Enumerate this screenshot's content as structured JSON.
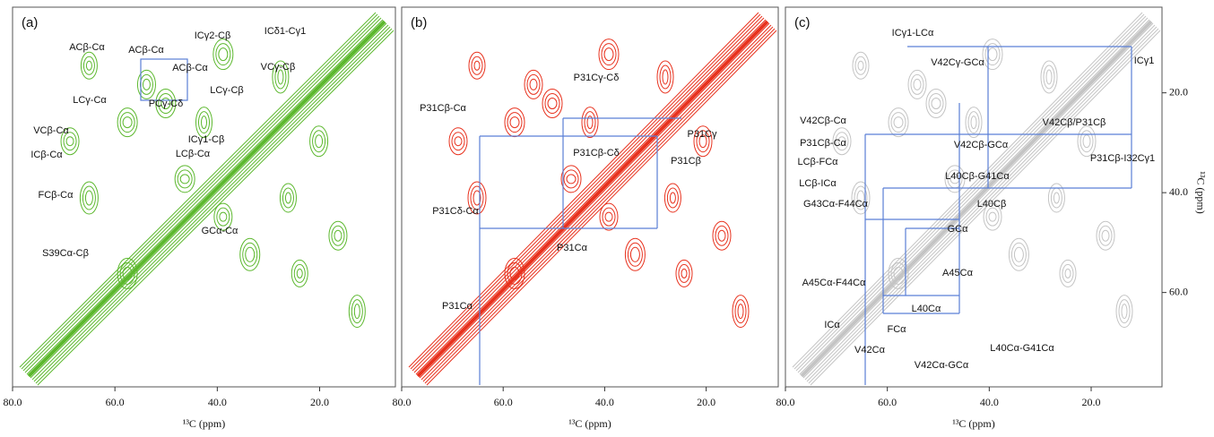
{
  "panels": [
    {
      "label": "(a)",
      "xlabel": "¹³C (ppm)",
      "xlim": [
        80,
        5.2
      ],
      "xticks": [
        {
          "value": 80,
          "label": "80.0"
        },
        {
          "value": 60,
          "label": "60.0"
        },
        {
          "value": 40,
          "label": "40.0"
        },
        {
          "value": 20,
          "label": "20.0"
        }
      ],
      "annotations": [
        "ACβ-Cα",
        "ACβ-Cα",
        "ICγ2-Cβ",
        "ICδ1-Cγ1",
        "ACβ-Cα",
        "VCγ-Cβ",
        "LCγ-Cα",
        "PCγ-Cδ",
        "LCγ-Cβ",
        "VCβ-Cα",
        "ICγ1-Cβ",
        "ICβ-Cα",
        "LCβ-Cα",
        "FCβ-Cα",
        "GCα-Cα",
        "S39Cα-Cβ"
      ]
    },
    {
      "label": "(b)",
      "xlabel": "¹³C (ppm)",
      "xlim": [
        80,
        5.8
      ],
      "xticks": [
        {
          "value": 80,
          "label": "80.0"
        },
        {
          "value": 60,
          "label": "60.0"
        },
        {
          "value": 40,
          "label": "40.0"
        },
        {
          "value": 20,
          "label": "20.0"
        }
      ],
      "annotations": [
        "P31Cγ-Cδ",
        "P31Cβ-Cα",
        "P31Cγ",
        "P31Cβ-Cδ",
        "P31Cβ",
        "P31Cδ-Cα",
        "P31Cα",
        "P31Cα"
      ]
    },
    {
      "label": "(c)",
      "xlabel": "¹³C (ppm)",
      "xlim": [
        80,
        6.1
      ],
      "xticks": [
        {
          "value": 80,
          "label": "80.0"
        },
        {
          "value": 60,
          "label": "60.0"
        },
        {
          "value": 40,
          "label": "40.0"
        },
        {
          "value": 20,
          "label": "20.0"
        }
      ],
      "ylabel": "¹³C (ppm)",
      "ylim": [
        3.2,
        78.9
      ],
      "yticks": [
        {
          "value": 20,
          "label": "20.0"
        },
        {
          "value": 40,
          "label": "40.0"
        },
        {
          "value": 60,
          "label": "60.0"
        }
      ],
      "annotations": [
        "ICγ1-LCα",
        "ICγ1",
        "V42Cγ-GCα",
        "V42Cβ-Cα",
        "V42Cβ/P31Cβ",
        "P31Cβ-Cα",
        "V42Cβ-GCα",
        "P31Cβ-I32Cγ1",
        "LCβ-FCα",
        "L40Cβ-G41Cα",
        "LCβ-ICα",
        "L40Cβ",
        "G43Cα-F44Cα",
        "GCα",
        "A45Cα",
        "A45Cα-F44Cα",
        "L40Cα",
        "ICα",
        "FCα",
        "V42Cα",
        "V42Cα-GCα",
        "L40Cα-G41Cα"
      ]
    }
  ]
}
